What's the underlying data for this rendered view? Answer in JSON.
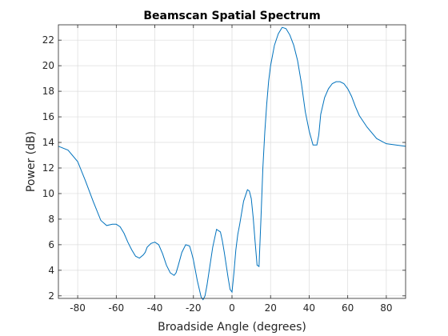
{
  "chart_data": {
    "type": "line",
    "title": "Beamscan Spatial Spectrum",
    "xlabel": "Broadside Angle (degrees)",
    "ylabel": "Power (dB)",
    "xlim": [
      -90,
      90
    ],
    "ylim": [
      1.8,
      23.2
    ],
    "xticks": [
      -80,
      -60,
      -40,
      -20,
      0,
      20,
      40,
      60,
      80
    ],
    "yticks": [
      2,
      4,
      6,
      8,
      10,
      12,
      14,
      16,
      18,
      20,
      22
    ],
    "grid": true,
    "line_color": "#0072BD",
    "series": [
      {
        "name": "",
        "x": [
          -90,
          -85,
          -80,
          -76,
          -72,
          -68,
          -65,
          -62,
          -60,
          -58,
          -56,
          -54,
          -52,
          -50,
          -48,
          -46,
          -45,
          -44,
          -42,
          -40,
          -38,
          -36,
          -34,
          -32,
          -30,
          -29,
          -28,
          -26,
          -24,
          -22,
          -21,
          -20,
          -18,
          -16,
          -15,
          -14,
          -13,
          -12,
          -10,
          -8,
          -6,
          -5,
          -4,
          -2,
          -1,
          0,
          1,
          2,
          3,
          4,
          6,
          8,
          9,
          10,
          11,
          12,
          13,
          14,
          15,
          16,
          17,
          18,
          19,
          20,
          22,
          24,
          26,
          28,
          30,
          32,
          34,
          36,
          38,
          40,
          42,
          44,
          45,
          46,
          48,
          50,
          52,
          54,
          56,
          58,
          60,
          62,
          64,
          66,
          70,
          75,
          80,
          85,
          90
        ],
        "y": [
          13.7,
          13.4,
          12.5,
          11.0,
          9.4,
          7.9,
          7.5,
          7.6,
          7.6,
          7.4,
          6.9,
          6.2,
          5.6,
          5.1,
          4.95,
          5.2,
          5.4,
          5.8,
          6.1,
          6.2,
          6.0,
          5.3,
          4.4,
          3.8,
          3.6,
          3.8,
          4.3,
          5.4,
          6.0,
          5.9,
          5.4,
          4.8,
          3.2,
          1.9,
          1.7,
          2.0,
          2.8,
          3.8,
          5.8,
          7.2,
          7.0,
          6.3,
          5.4,
          3.4,
          2.5,
          2.3,
          3.8,
          5.6,
          6.8,
          7.6,
          9.4,
          10.3,
          10.2,
          9.6,
          8.1,
          6.2,
          4.4,
          4.3,
          8.0,
          12.0,
          14.8,
          17.0,
          18.8,
          20.0,
          21.6,
          22.5,
          23.0,
          22.9,
          22.4,
          21.6,
          20.4,
          18.6,
          16.4,
          14.9,
          13.8,
          13.8,
          14.6,
          16.2,
          17.5,
          18.2,
          18.6,
          18.75,
          18.75,
          18.6,
          18.2,
          17.6,
          16.8,
          16.1,
          15.2,
          14.3,
          13.9,
          13.8,
          13.7
        ]
      }
    ]
  }
}
